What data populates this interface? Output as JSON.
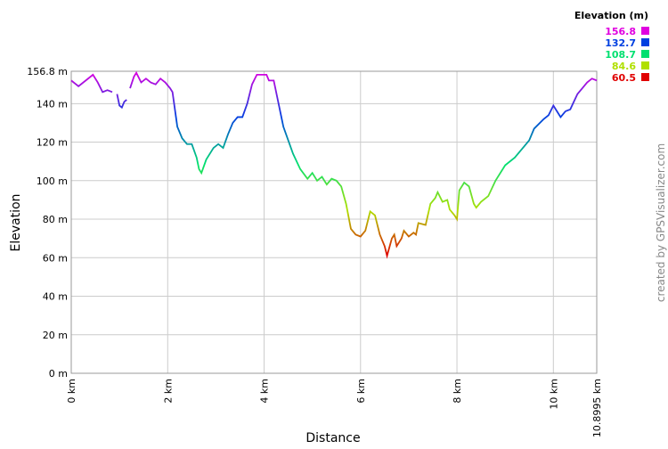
{
  "chart_data": {
    "type": "line",
    "x_label": "Distance",
    "y_label": "Elevation",
    "watermark": "created by GPSVisualizer.com",
    "legend_title": "Elevation (m)",
    "color_scale": [
      {
        "value": 156.8,
        "color": "#e000e0"
      },
      {
        "value": 132.7,
        "color": "#0040e0"
      },
      {
        "value": 108.7,
        "color": "#00e070"
      },
      {
        "value": 84.6,
        "color": "#b0e000"
      },
      {
        "value": 60.5,
        "color": "#e00000"
      }
    ],
    "xlim": [
      0,
      10.8995
    ],
    "ylim": [
      0,
      156.8
    ],
    "xticks": [
      {
        "value": 0,
        "label": "0 km"
      },
      {
        "value": 2,
        "label": "2 km"
      },
      {
        "value": 4,
        "label": "4 km"
      },
      {
        "value": 6,
        "label": "6 km"
      },
      {
        "value": 8,
        "label": "8 km"
      },
      {
        "value": 10,
        "label": "10 km"
      },
      {
        "value": 10.8995,
        "label": "10.8995 km"
      }
    ],
    "yticks": [
      {
        "value": 0,
        "label": "0 m"
      },
      {
        "value": 20,
        "label": "20 m"
      },
      {
        "value": 40,
        "label": "40 m"
      },
      {
        "value": 60,
        "label": "60 m"
      },
      {
        "value": 80,
        "label": "80 m"
      },
      {
        "value": 100,
        "label": "100 m"
      },
      {
        "value": 120,
        "label": "120 m"
      },
      {
        "value": 140,
        "label": "140 m"
      },
      {
        "value": 156.8,
        "label": "156.8 m"
      }
    ],
    "grid": true,
    "series": [
      {
        "name": "Elevation",
        "x": [
          0,
          0.15,
          0.3,
          0.45,
          0.55,
          0.65,
          0.75,
          0.85,
          0.9,
          0.95,
          1.0,
          1.05,
          1.1,
          1.15,
          1.18,
          1.22,
          1.3,
          1.35,
          1.45,
          1.55,
          1.65,
          1.75,
          1.85,
          1.95,
          2.05,
          2.1,
          2.2,
          2.3,
          2.4,
          2.5,
          2.6,
          2.65,
          2.7,
          2.8,
          2.95,
          3.05,
          3.15,
          3.25,
          3.35,
          3.45,
          3.55,
          3.65,
          3.75,
          3.85,
          3.95,
          4.05,
          4.1,
          4.2,
          4.3,
          4.4,
          4.5,
          4.6,
          4.75,
          4.9,
          5.0,
          5.1,
          5.2,
          5.3,
          5.4,
          5.5,
          5.6,
          5.7,
          5.8,
          5.9,
          6.0,
          6.1,
          6.2,
          6.3,
          6.4,
          6.5,
          6.55,
          6.65,
          6.7,
          6.75,
          6.85,
          6.9,
          7.0,
          7.1,
          7.15,
          7.2,
          7.35,
          7.45,
          7.55,
          7.6,
          7.7,
          7.8,
          7.85,
          7.95,
          8.0,
          8.05,
          8.15,
          8.25,
          8.35,
          8.4,
          8.5,
          8.65,
          8.8,
          9.0,
          9.2,
          9.4,
          9.5,
          9.6,
          9.8,
          9.9,
          10.0,
          10.1,
          10.15,
          10.25,
          10.35,
          10.5,
          10.6,
          10.7,
          10.8,
          10.8995
        ],
        "values": [
          152,
          149,
          152,
          155,
          151,
          146,
          147,
          146,
          null,
          145,
          139,
          138,
          141,
          142,
          null,
          148,
          154,
          156,
          151,
          153,
          151,
          150,
          153,
          151,
          148,
          146,
          128,
          122,
          119,
          119,
          112,
          106,
          104,
          111,
          117,
          119,
          117,
          124,
          130,
          133,
          133,
          140,
          150,
          155,
          155,
          155,
          152,
          152,
          140,
          128,
          121,
          114,
          106,
          101,
          104,
          100,
          102,
          98,
          101,
          100,
          97,
          88,
          75,
          72,
          71,
          74,
          84,
          82,
          72,
          66,
          61,
          70,
          72,
          66,
          70,
          74,
          71,
          73,
          72,
          78,
          77,
          88,
          91,
          94,
          89,
          90,
          85,
          82,
          80,
          95,
          99,
          97,
          88,
          86,
          89,
          92,
          100,
          108,
          112,
          118,
          121,
          127,
          132,
          134,
          139,
          135,
          133,
          136,
          137,
          145,
          148,
          151,
          153,
          152
        ]
      }
    ]
  }
}
